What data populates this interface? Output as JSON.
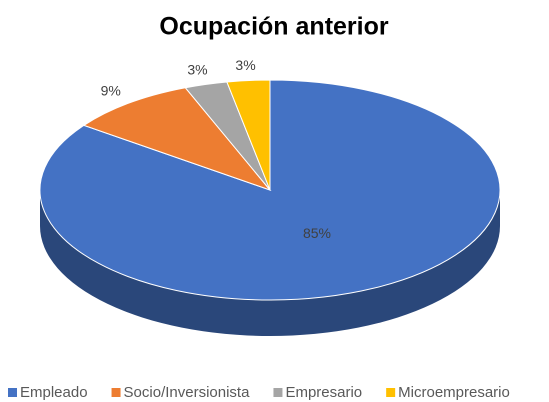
{
  "chart_data": {
    "type": "pie3d",
    "title": "Ocupación anterior",
    "categories": [
      "Empleado",
      "Socio/Inversionista",
      "Empresario",
      "Microempresario"
    ],
    "values": [
      85,
      9,
      3,
      3
    ],
    "value_labels": [
      "85%",
      "9%",
      "3%",
      "3%"
    ],
    "colors": [
      "#4472c4",
      "#ed7d31",
      "#a5a5a5",
      "#ffc000"
    ],
    "legend": "bottom"
  }
}
